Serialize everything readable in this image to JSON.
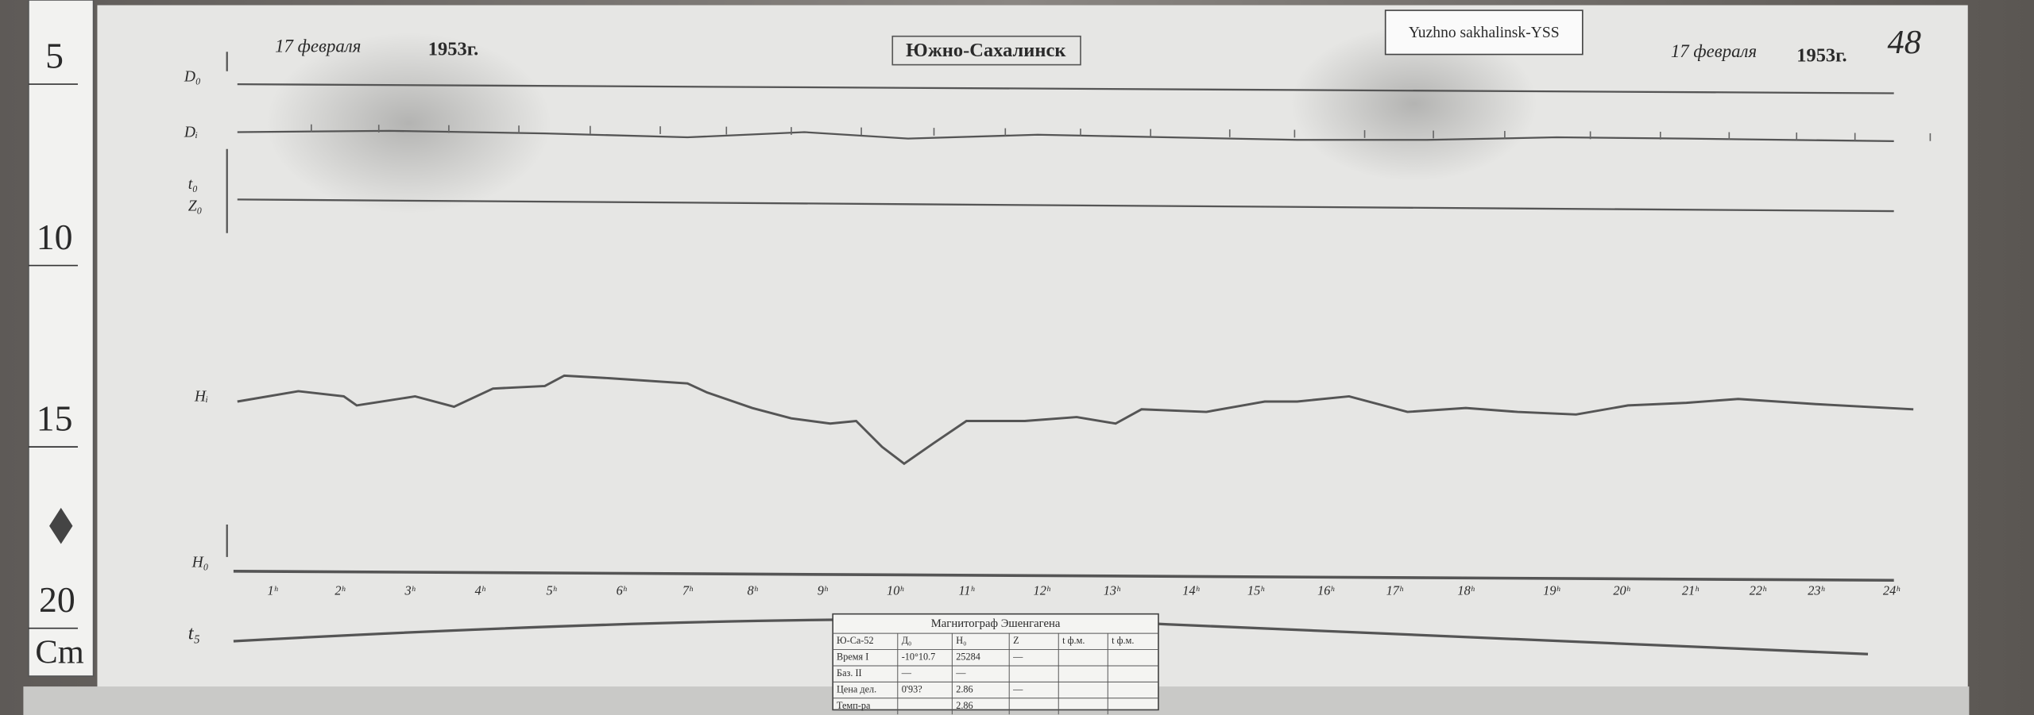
{
  "header": {
    "date_left": "17 февраля",
    "year_left": "1953г.",
    "station": "Южно-Сахалинск",
    "tag": "Yuzhno sakhalinsk-YSS",
    "date_right": "17 февраля",
    "year_right": "1953г.",
    "sheet_number": "48"
  },
  "ruler": {
    "marks": [
      "5",
      "10",
      "15",
      "20"
    ],
    "unit": "Cm"
  },
  "traces": {
    "d0": "D₀",
    "di": "Dᵢ",
    "t0": "t₀",
    "z0": "Z₀",
    "hi": "Hᵢ",
    "h0": "H₀",
    "t5": "t₅"
  },
  "hours": [
    "1ʰ",
    "2ʰ",
    "3ʰ",
    "4ʰ",
    "5ʰ",
    "6ʰ",
    "7ʰ",
    "8ʰ",
    "9ʰ",
    "10ʰ",
    "11ʰ",
    "12ʰ",
    "13ʰ",
    "14ʰ",
    "15ʰ",
    "16ʰ",
    "17ʰ",
    "18ʰ",
    "19ʰ",
    "20ʰ",
    "21ʰ",
    "22ʰ",
    "23ʰ",
    "24ʰ"
  ],
  "table": {
    "title": "Магнитограф Эшенгагена",
    "header": [
      "Ю-Са-52",
      "Д₀",
      "H₀",
      "Z",
      "t ф.м.",
      "t ф.м."
    ],
    "rows": [
      [
        "Время I",
        "-10°10.7",
        "25284",
        "—",
        "",
        ""
      ],
      [
        "Баз. II",
        "—",
        "—",
        "",
        "",
        ""
      ],
      [
        "Цена дел.",
        "0'93?",
        "2.86",
        "—",
        "",
        ""
      ],
      [
        "Темп-ра",
        "",
        "2.86",
        "",
        "",
        ""
      ]
    ]
  }
}
